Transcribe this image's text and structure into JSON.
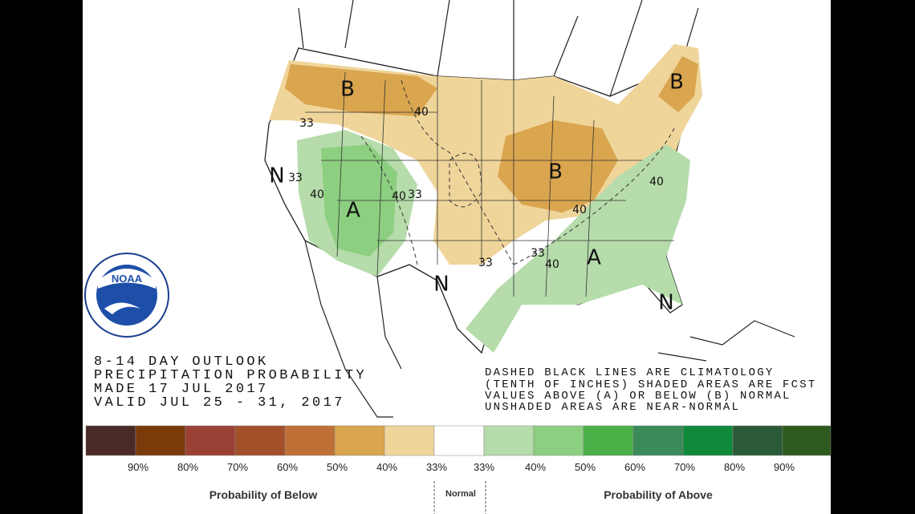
{
  "title_block": {
    "lines": [
      "8-14 DAY OUTLOOK",
      "PRECIPITATION PROBABILITY",
      "MADE  17 JUL 2017",
      "VALID  JUL 25 - 31, 2017"
    ]
  },
  "notes": {
    "lines": [
      "DASHED BLACK LINES ARE CLIMATOLOGY",
      "(TENTH OF INCHES) SHADED AREAS ARE FCST",
      "VALUES ABOVE (A) OR BELOW (B) NORMAL",
      "UNSHADED AREAS ARE NEAR-NORMAL"
    ]
  },
  "map": {
    "labels": [
      "B",
      "B",
      "B",
      "A",
      "A",
      "N",
      "N",
      "N"
    ],
    "contour_labels": [
      "40",
      "33",
      "33",
      "40",
      "40",
      "33",
      "40",
      "40",
      "33",
      "33",
      "40"
    ]
  },
  "logo": {
    "text": "NOAA"
  },
  "legend": {
    "ticks": [
      "90%",
      "80%",
      "70%",
      "60%",
      "50%",
      "40%",
      "33%",
      "33%",
      "40%",
      "50%",
      "60%",
      "70%",
      "80%",
      "90%"
    ],
    "below": "Probability of Below",
    "normal": "Normal",
    "above": "Probability of Above"
  }
}
